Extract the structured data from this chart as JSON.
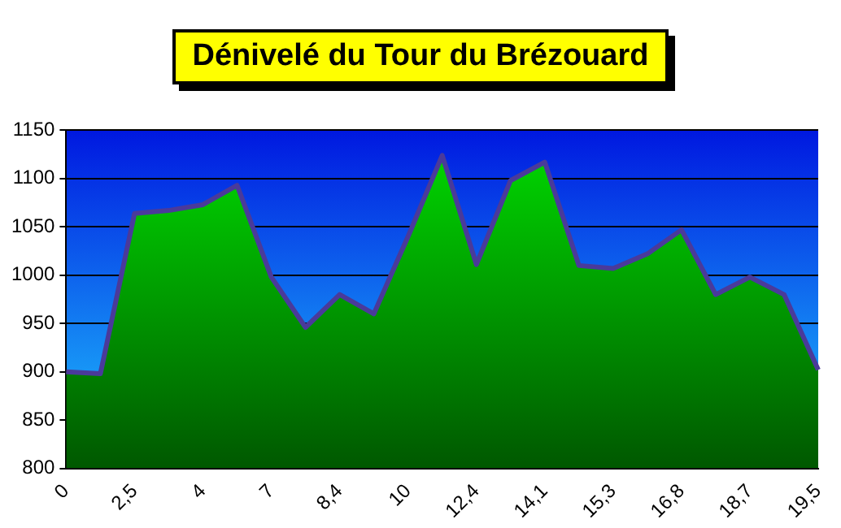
{
  "chart_data": {
    "type": "area",
    "title": "Dénivelé du Tour du Brézouard",
    "categories": [
      "0",
      null,
      "2,5",
      null,
      "4",
      null,
      "7",
      null,
      "8,4",
      null,
      "10",
      null,
      "12,4",
      null,
      "14,1",
      null,
      "15,3",
      null,
      "16,8",
      null,
      "18,7",
      null,
      "19,5"
    ],
    "series": [
      {
        "color": "#00dd00",
        "values": [
          900,
          898,
          1064,
          1067,
          1073,
          1093,
          998,
          946,
          980,
          960,
          1040,
          1124,
          1011,
          1098,
          1117,
          1010,
          1007,
          1022,
          1047,
          980,
          998,
          980,
          902
        ]
      }
    ],
    "ylim": [
      800,
      1150
    ],
    "yticks": [
      800,
      850,
      900,
      950,
      1000,
      1050,
      1100,
      1150
    ],
    "grid": "y",
    "legend": false
  }
}
